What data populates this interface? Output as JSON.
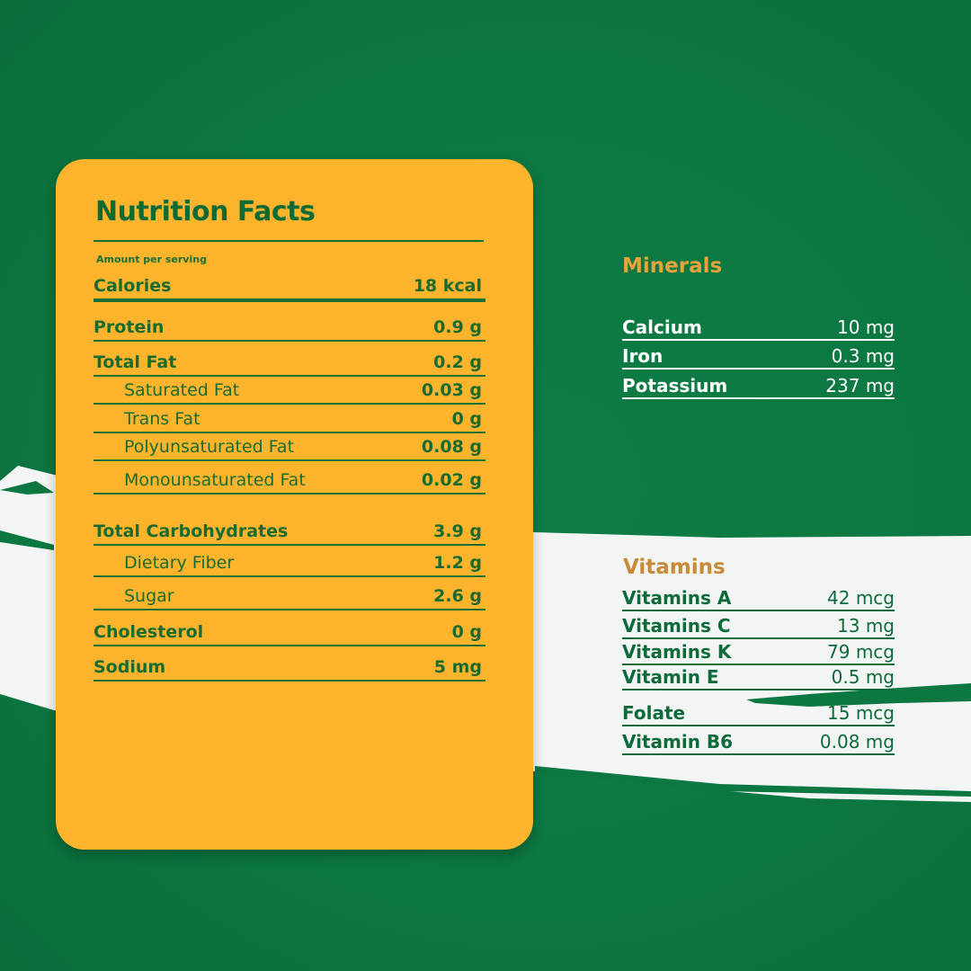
{
  "colors": {
    "background": "#0c7741",
    "card": "#fbb42c",
    "text_green": "#1a6b30",
    "minerals_heading": "#e8a23a",
    "vitamins_heading": "#c98a37",
    "band": "#f3f5f4"
  },
  "nutrition": {
    "title": "Nutrition Facts",
    "amount_per_serving": "Amount per serving",
    "rows": [
      {
        "label": "Calories",
        "value": "18 kcal",
        "level": "main"
      },
      {
        "label": "Protein",
        "value": "0.9 g",
        "level": "main"
      },
      {
        "label": "Total Fat",
        "value": "0.2 g",
        "level": "main"
      },
      {
        "label": "Saturated Fat",
        "value": "0.03 g",
        "level": "sub"
      },
      {
        "label": "Trans Fat",
        "value": "0 g",
        "level": "sub"
      },
      {
        "label": "Polyunsaturated Fat",
        "value": "0.08 g",
        "level": "sub"
      },
      {
        "label": "Monounsaturated Fat",
        "value": "0.02 g",
        "level": "sub"
      },
      {
        "label": "Total Carbohydrates",
        "value": "3.9 g",
        "level": "main"
      },
      {
        "label": "Dietary Fiber",
        "value": "1.2 g",
        "level": "sub"
      },
      {
        "label": "Sugar",
        "value": "2.6 g",
        "level": "sub"
      },
      {
        "label": "Cholesterol",
        "value": "0 g",
        "level": "main"
      },
      {
        "label": "Sodium",
        "value": "5 mg",
        "level": "main"
      }
    ]
  },
  "minerals": {
    "heading": "Minerals",
    "rows": [
      {
        "label": "Calcium",
        "value": "10 mg"
      },
      {
        "label": "Iron",
        "value": "0.3 mg"
      },
      {
        "label": "Potassium",
        "value": "237 mg"
      }
    ]
  },
  "vitamins": {
    "heading": "Vitamins",
    "rows": [
      {
        "label": "Vitamins A",
        "value": "42 mcg"
      },
      {
        "label": "Vitamins C",
        "value": "13 mg"
      },
      {
        "label": "Vitamins K",
        "value": "79 mcg"
      },
      {
        "label": "Vitamin E",
        "value": "0.5 mg"
      },
      {
        "label": "Folate",
        "value": "15 mcg"
      },
      {
        "label": "Vitamin B6",
        "value": "0.08 mg"
      }
    ]
  }
}
